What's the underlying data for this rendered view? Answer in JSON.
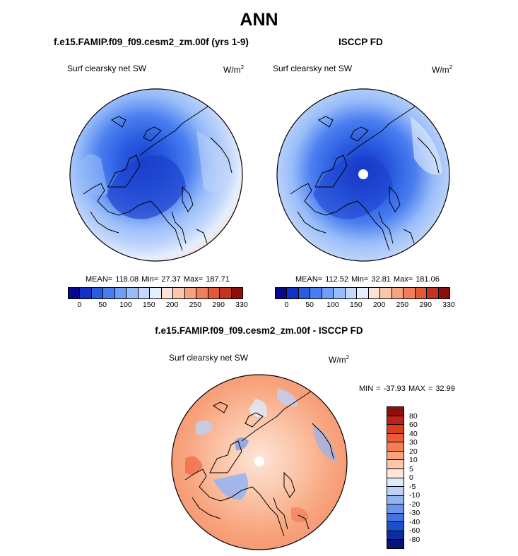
{
  "figure": {
    "title": "ANN",
    "bottom_title": "f.e15.FAMIP.f09_f09.cesm2_zm.00f - ISCCP FD"
  },
  "panels": [
    {
      "title": "f.e15.FAMIP.f09_f09.cesm2_zm.00f (yrs 1-9)",
      "variable": "Surf clearsky net SW",
      "units": "W/m",
      "units_exp": "2",
      "stats": "MEAN= 118.08  Min=  27.37  Max= 187.71"
    },
    {
      "title": "ISCCP FD",
      "variable": "Surf clearsky net SW",
      "units": "W/m",
      "units_exp": "2",
      "stats": "MEAN= 112.52  Min=  32.81  Max= 181.06"
    },
    {
      "variable": "Surf clearsky net SW",
      "units": "W/m",
      "units_exp": "2",
      "stats": "MIN = -37.93 MAX =  32.99"
    }
  ],
  "chart_data": [
    {
      "type": "heatmap",
      "title": "f.e15.FAMIP.f09_f09.cesm2_zm.00f (yrs 1-9)",
      "projection": "polar stereographic (North Pole)",
      "variable": "Surf clearsky net SW",
      "units": "W/m2",
      "mean": 118.08,
      "min": 27.37,
      "max": 187.71,
      "colorbar_ticks": [
        "0",
        "50",
        "100",
        "150",
        "200",
        "250",
        "290",
        "330"
      ]
    },
    {
      "type": "heatmap",
      "title": "ISCCP FD",
      "projection": "polar stereographic (North Pole)",
      "variable": "Surf clearsky net SW",
      "units": "W/m2",
      "mean": 112.52,
      "min": 32.81,
      "max": 181.06,
      "colorbar_ticks": [
        "0",
        "50",
        "100",
        "150",
        "200",
        "250",
        "290",
        "330"
      ]
    },
    {
      "type": "heatmap",
      "title": "f.e15.FAMIP.f09_f09.cesm2_zm.00f - ISCCP FD",
      "projection": "polar stereographic (North Pole)",
      "variable": "Surf clearsky net SW",
      "units": "W/m2",
      "min": -37.93,
      "max": 32.99,
      "colorbar_ticks": [
        "80",
        "60",
        "40",
        "30",
        "20",
        "10",
        "5",
        "0",
        "-5",
        "-10",
        "-20",
        "-30",
        "-40",
        "-60",
        "-80"
      ]
    }
  ],
  "colorbars": {
    "abs_colors": [
      "#08088c",
      "#1530c4",
      "#2a5ce0",
      "#4a7ef0",
      "#6e9ef7",
      "#98bcf9",
      "#c4d8fb",
      "#e4eefc",
      "#fbe2d6",
      "#f9c7ad",
      "#f5a381",
      "#ef7f5c",
      "#e05a3a",
      "#c23420",
      "#8c0f0c"
    ],
    "abs_ticks": [
      "0",
      "50",
      "100",
      "150",
      "200",
      "250",
      "290",
      "330"
    ],
    "diff_colors": [
      "#8c0f0c",
      "#bd2218",
      "#dd3e22",
      "#ed5b35",
      "#f47e55",
      "#f8a47e",
      "#fbc7ab",
      "#fde5d7",
      "#dfeafb",
      "#bcd2f8",
      "#93b4f3",
      "#6d94ec",
      "#4473e1",
      "#1f4ec9",
      "#0c2da0",
      "#07137a"
    ],
    "diff_ticks": [
      "80",
      "60",
      "40",
      "30",
      "20",
      "10",
      "5",
      "0",
      "-5",
      "-10",
      "-20",
      "-30",
      "-40",
      "-60",
      "-80"
    ]
  }
}
